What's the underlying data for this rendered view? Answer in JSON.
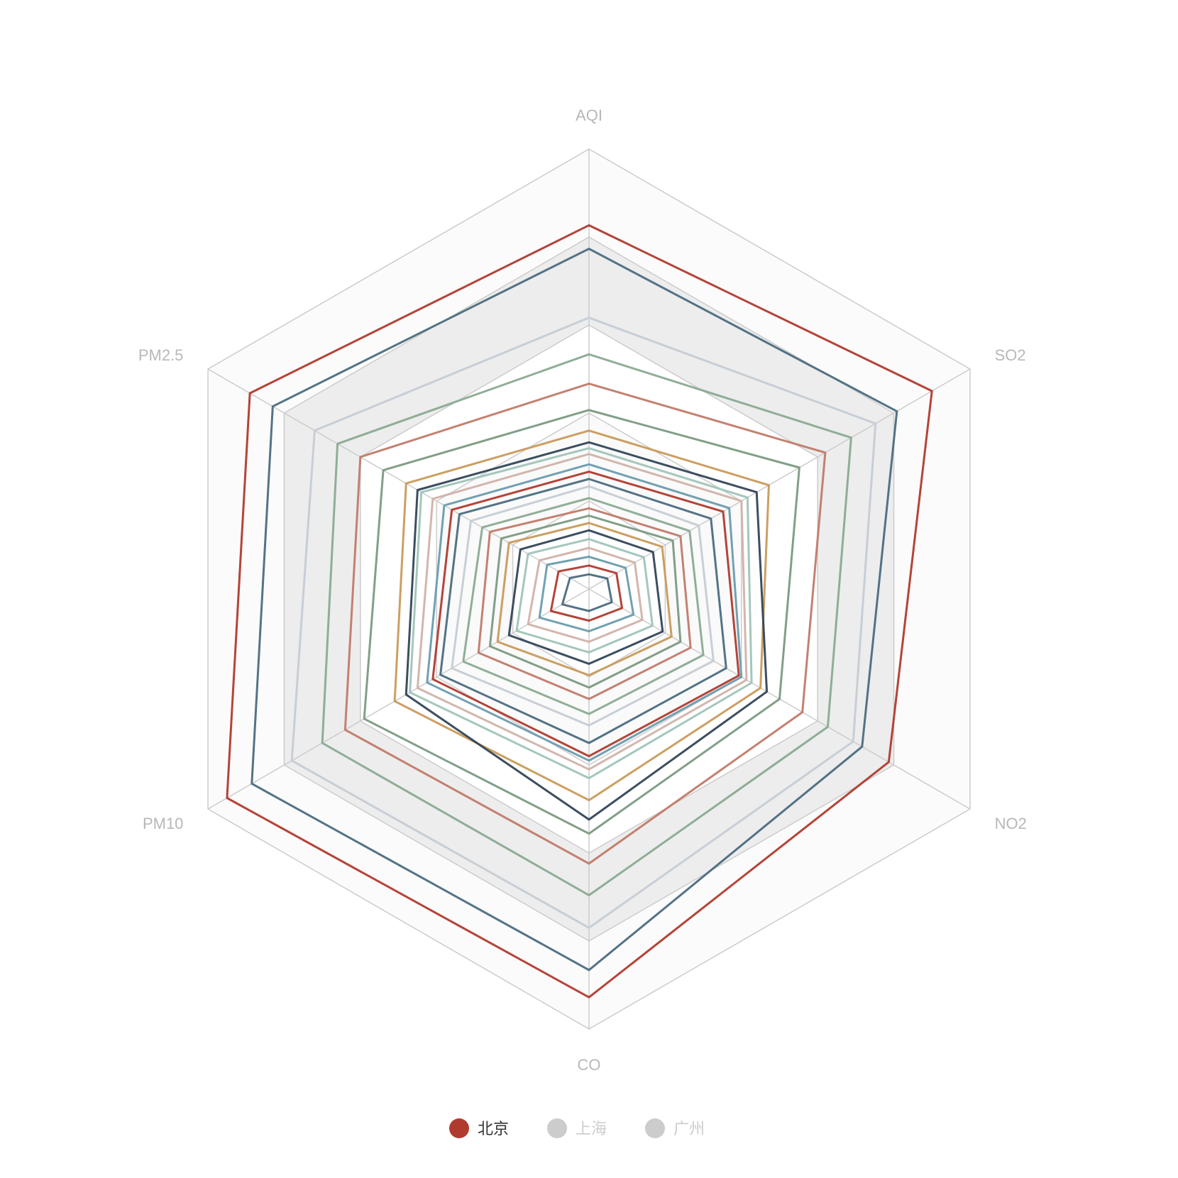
{
  "chart_data": {
    "type": "radar",
    "indicators": [
      {
        "name": "AQI",
        "max": 300
      },
      {
        "name": "SO2",
        "max": 250
      },
      {
        "name": "NO2",
        "max": 300
      },
      {
        "name": "CO",
        "max": 5
      },
      {
        "name": "PM10",
        "max": 200
      },
      {
        "name": "PM2.5",
        "max": 100
      }
    ],
    "legend": [
      {
        "name": "北京",
        "color": "#b03a2e",
        "active": true
      },
      {
        "name": "上海",
        "color": "#cccccc",
        "active": false
      },
      {
        "name": "广州",
        "color": "#cccccc",
        "active": false
      }
    ],
    "active_series": "北京",
    "colors": [
      "#b03a2e",
      "#4b6b80",
      "#c5ccd4",
      "#8aaa92",
      "#c17a68",
      "#7a9a82",
      "#c99a5a",
      "#314457",
      "#9fc4b8",
      "#d0b2a8",
      "#6a9cad"
    ],
    "series": [
      {
        "name": "北京",
        "values": [
          [
            248,
            225,
            236,
            4.64,
            190,
            89
          ],
          [
            232,
            202,
            215,
            4.33,
            177,
            83
          ],
          [
            185,
            188,
            208,
            3.85,
            156,
            72
          ],
          [
            160,
            172,
            188,
            3.48,
            140,
            66
          ],
          [
            140,
            155,
            168,
            3.12,
            128,
            60
          ],
          [
            122,
            138,
            150,
            2.78,
            118,
            54
          ],
          [
            108,
            118,
            135,
            2.4,
            102,
            48
          ],
          [
            100,
            110,
            140,
            2.62,
            96,
            45
          ],
          [
            96,
            104,
            128,
            2.15,
            94,
            44
          ],
          [
            92,
            100,
            124,
            2.05,
            90,
            41
          ],
          [
            85,
            92,
            120,
            1.95,
            85,
            38
          ],
          [
            80,
            88,
            118,
            1.9,
            82,
            36
          ],
          [
            75,
            80,
            108,
            1.75,
            78,
            34
          ],
          [
            70,
            72,
            98,
            1.55,
            72,
            31
          ],
          [
            62,
            66,
            90,
            1.42,
            66,
            28
          ],
          [
            55,
            60,
            80,
            1.25,
            58,
            26
          ],
          [
            50,
            55,
            72,
            1.12,
            52,
            23
          ],
          [
            45,
            48,
            65,
            0.98,
            48,
            21
          ],
          [
            40,
            42,
            58,
            0.85,
            42,
            18
          ],
          [
            34,
            36,
            50,
            0.72,
            38,
            16
          ],
          [
            28,
            30,
            42,
            0.6,
            32,
            13
          ],
          [
            22,
            24,
            35,
            0.48,
            26,
            11
          ],
          [
            16,
            18,
            26,
            0.36,
            20,
            8
          ],
          [
            10,
            12,
            18,
            0.25,
            14,
            5
          ]
        ]
      }
    ]
  }
}
